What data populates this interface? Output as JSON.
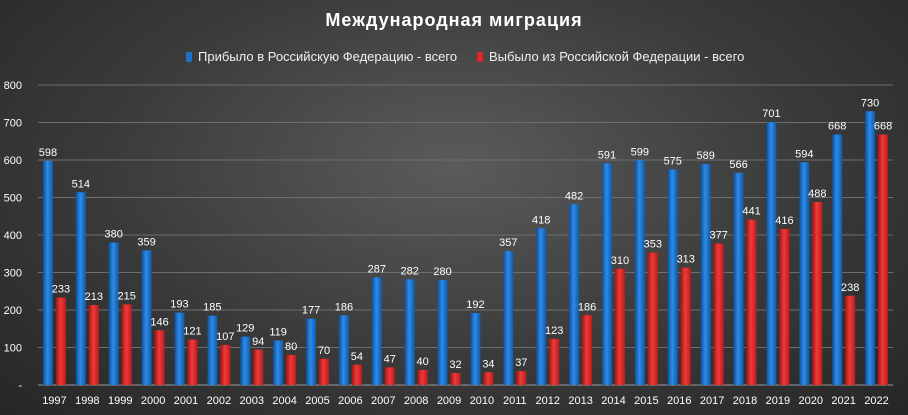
{
  "chart_data": {
    "type": "bar",
    "title": "Международная миграция",
    "categories": [
      "1997",
      "1998",
      "1999",
      "2000",
      "2001",
      "2002",
      "2003",
      "2004",
      "2005",
      "2006",
      "2007",
      "2008",
      "2009",
      "2010",
      "2011",
      "2012",
      "2013",
      "2014",
      "2015",
      "2016",
      "2017",
      "2018",
      "2019",
      "2020",
      "2021",
      "2022"
    ],
    "series": [
      {
        "name": "Прибыло в Российскую Федерацию - всего",
        "color": "#1f72c8",
        "values": [
          598,
          514,
          380,
          359,
          193,
          185,
          129,
          119,
          177,
          186,
          287,
          282,
          280,
          192,
          357,
          418,
          482,
          591,
          599,
          575,
          589,
          566,
          701,
          594,
          668,
          730
        ]
      },
      {
        "name": "Выбыло из Российской Федерации - всего",
        "color": "#e02424",
        "values": [
          233,
          213,
          215,
          146,
          121,
          107,
          94,
          80,
          70,
          54,
          47,
          40,
          32,
          34,
          37,
          123,
          186,
          310,
          353,
          313,
          377,
          441,
          416,
          488,
          238,
          668
        ]
      }
    ],
    "xlabel": "",
    "ylabel": "",
    "ylim": [
      0,
      800
    ],
    "yticks": [
      "-",
      "100",
      "200",
      "300",
      "400",
      "500",
      "600",
      "700",
      "800"
    ],
    "grid": true,
    "legend_position": "top"
  }
}
